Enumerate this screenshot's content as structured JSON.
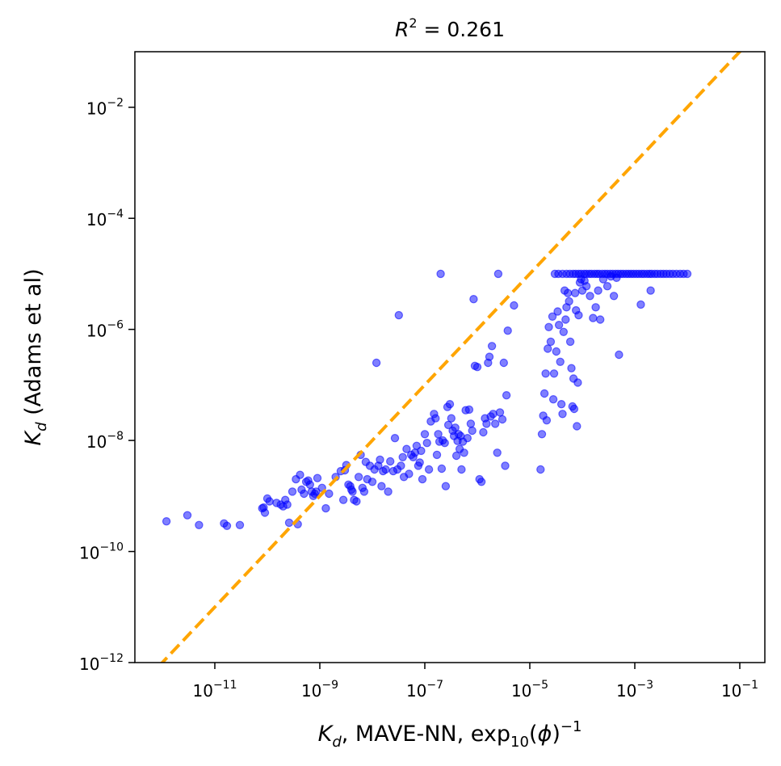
{
  "chart_data": {
    "type": "scatter",
    "title": {
      "base": "R",
      "sup": "2",
      "rest": " = 0.261"
    },
    "xlabel": {
      "sym": "K",
      "sub": "d",
      "main": ", MAVE-NN, exp",
      "sub2": "10",
      "mid": "(",
      "phi": "ϕ",
      "close": ")",
      "sup": "−1"
    },
    "ylabel": {
      "sym": "K",
      "sub": "d",
      "main": " (Adams et al)"
    },
    "x_scale": "log",
    "y_scale": "log",
    "xlim": [
      3e-13,
      0.3
    ],
    "ylim": [
      1e-12,
      0.1
    ],
    "x_ticks": [
      {
        "value": 1e-11,
        "base": "10",
        "exp": "−11"
      },
      {
        "value": 1e-09,
        "base": "10",
        "exp": "−9"
      },
      {
        "value": 1e-07,
        "base": "10",
        "exp": "−7"
      },
      {
        "value": 1e-05,
        "base": "10",
        "exp": "−5"
      },
      {
        "value": 0.001,
        "base": "10",
        "exp": "−3"
      },
      {
        "value": 0.1,
        "base": "10",
        "exp": "−1"
      }
    ],
    "y_ticks": [
      {
        "value": 1e-12,
        "base": "10",
        "exp": "−12"
      },
      {
        "value": 1e-10,
        "base": "10",
        "exp": "−10"
      },
      {
        "value": 1e-08,
        "base": "10",
        "exp": "−8"
      },
      {
        "value": 1e-06,
        "base": "10",
        "exp": "−6"
      },
      {
        "value": 0.0001,
        "base": "10",
        "exp": "−4"
      },
      {
        "value": 0.01,
        "base": "10",
        "exp": "−2"
      }
    ],
    "grid": false,
    "colors": {
      "points": "#0000ff",
      "diagonal": "#ffa500"
    },
    "diagonal": {
      "style": "dashed",
      "from": [
        1e-13,
        1e-13
      ],
      "to": [
        1,
        1
      ]
    },
    "points": [
      [
        1.2e-12,
        3.5e-10
      ],
      [
        3e-12,
        4.5e-10
      ],
      [
        5e-12,
        3e-10
      ],
      [
        1.5e-11,
        3.2e-10
      ],
      [
        1.7e-11,
        2.9e-10
      ],
      [
        3e-11,
        3e-10
      ],
      [
        8e-11,
        6e-10
      ],
      [
        8.5e-11,
        6.2e-10
      ],
      [
        9e-11,
        5e-10
      ],
      [
        1e-10,
        9e-10
      ],
      [
        1.1e-10,
        8e-10
      ],
      [
        1.5e-10,
        7.5e-10
      ],
      [
        1.8e-10,
        7e-10
      ],
      [
        2e-10,
        6.5e-10
      ],
      [
        2.2e-10,
        8.5e-10
      ],
      [
        2.4e-10,
        7e-10
      ],
      [
        2.6e-10,
        3.3e-10
      ],
      [
        3e-10,
        1.2e-09
      ],
      [
        3.5e-10,
        2e-09
      ],
      [
        3.8e-10,
        3.1e-10
      ],
      [
        4.2e-10,
        2.4e-09
      ],
      [
        4.5e-10,
        1.3e-09
      ],
      [
        5e-10,
        1.1e-09
      ],
      [
        5.5e-10,
        1.8e-09
      ],
      [
        6e-10,
        1.9e-09
      ],
      [
        6.5e-10,
        1.6e-09
      ],
      [
        7e-10,
        1.2e-09
      ],
      [
        7.5e-10,
        1e-09
      ],
      [
        8e-10,
        1.1e-09
      ],
      [
        8.5e-10,
        1.2e-09
      ],
      [
        9e-10,
        2.1e-09
      ],
      [
        1.1e-09,
        1.4e-09
      ],
      [
        1.3e-09,
        6e-10
      ],
      [
        1.5e-09,
        1.1e-09
      ],
      [
        2e-09,
        2.2e-09
      ],
      [
        2.5e-09,
        2.8e-09
      ],
      [
        2.8e-09,
        8.5e-10
      ],
      [
        3e-09,
        2.9e-09
      ],
      [
        3.2e-09,
        3.6e-09
      ],
      [
        3.5e-09,
        1.6e-09
      ],
      [
        3.8e-09,
        1.5e-09
      ],
      [
        4e-09,
        1.3e-09
      ],
      [
        4.2e-09,
        1.2e-09
      ],
      [
        4.5e-09,
        8.5e-10
      ],
      [
        5e-09,
        8e-10
      ],
      [
        5.5e-09,
        2.2e-09
      ],
      [
        6e-09,
        5.5e-09
      ],
      [
        6.5e-09,
        1.4e-09
      ],
      [
        7e-09,
        1.2e-09
      ],
      [
        7.5e-09,
        4.1e-09
      ],
      [
        8e-09,
        2e-09
      ],
      [
        9e-09,
        3.5e-09
      ],
      [
        1e-08,
        1.8e-09
      ],
      [
        1.1e-08,
        3e-09
      ],
      [
        1.2e-08,
        2.5e-07
      ],
      [
        1.3e-08,
        3.5e-09
      ],
      [
        1.4e-08,
        4.5e-09
      ],
      [
        1.5e-08,
        1.5e-09
      ],
      [
        1.6e-08,
        2.8e-09
      ],
      [
        1.8e-08,
        3e-09
      ],
      [
        2e-08,
        1.2e-09
      ],
      [
        2.2e-08,
        4.2e-09
      ],
      [
        2.5e-08,
        2.8e-09
      ],
      [
        2.7e-08,
        1.1e-08
      ],
      [
        3e-08,
        3e-09
      ],
      [
        3.2e-08,
        1.8e-06
      ],
      [
        3.5e-08,
        3.5e-09
      ],
      [
        3.8e-08,
        5e-09
      ],
      [
        4e-08,
        2.2e-09
      ],
      [
        4.5e-08,
        7e-09
      ],
      [
        5e-08,
        2.5e-09
      ],
      [
        5.5e-08,
        5.5e-09
      ],
      [
        6e-08,
        5e-09
      ],
      [
        6.5e-08,
        6e-09
      ],
      [
        7e-08,
        8e-09
      ],
      [
        7.5e-08,
        3.5e-09
      ],
      [
        8e-08,
        4e-09
      ],
      [
        8.5e-08,
        6.5e-09
      ],
      [
        9e-08,
        2e-09
      ],
      [
        1e-07,
        1.3e-08
      ],
      [
        1.1e-07,
        9e-09
      ],
      [
        1.2e-07,
        3e-09
      ],
      [
        1.3e-07,
        2.2e-08
      ],
      [
        1.5e-07,
        3e-08
      ],
      [
        1.6e-07,
        2.5e-08
      ],
      [
        1.7e-07,
        5.5e-09
      ],
      [
        1.8e-07,
        1.3e-08
      ],
      [
        1.9e-07,
        9.5e-09
      ],
      [
        2e-07,
        1e-05
      ],
      [
        2.1e-07,
        3.1e-09
      ],
      [
        2.2e-07,
        1e-08
      ],
      [
        2.4e-07,
        9e-09
      ],
      [
        2.5e-07,
        1.5e-09
      ],
      [
        2.7e-07,
        4e-08
      ],
      [
        2.8e-07,
        1.9e-08
      ],
      [
        3e-07,
        4.5e-08
      ],
      [
        3.2e-07,
        2.5e-08
      ],
      [
        3.4e-07,
        1.5e-08
      ],
      [
        3.6e-07,
        1.2e-08
      ],
      [
        3.8e-07,
        1.7e-08
      ],
      [
        4e-07,
        5.3e-09
      ],
      [
        4.2e-07,
        9.8e-09
      ],
      [
        4.4e-07,
        1.3e-08
      ],
      [
        4.6e-07,
        7e-09
      ],
      [
        4.8e-07,
        1.2e-08
      ],
      [
        5e-07,
        3e-09
      ],
      [
        5.3e-07,
        9.5e-09
      ],
      [
        5.6e-07,
        6e-09
      ],
      [
        6e-07,
        3.5e-08
      ],
      [
        6.5e-07,
        1.1e-08
      ],
      [
        7e-07,
        3.6e-08
      ],
      [
        7.5e-07,
        2e-08
      ],
      [
        8e-07,
        1.5e-08
      ],
      [
        8.5e-07,
        3.5e-06
      ],
      [
        9e-07,
        2.2e-07
      ],
      [
        1e-06,
        2.1e-07
      ],
      [
        1.1e-06,
        2e-09
      ],
      [
        1.2e-06,
        1.8e-09
      ],
      [
        1.3e-06,
        1.4e-08
      ],
      [
        1.4e-06,
        2.5e-08
      ],
      [
        1.5e-06,
        2e-08
      ],
      [
        1.6e-06,
        2.5e-07
      ],
      [
        1.7e-06,
        3.2e-07
      ],
      [
        1.8e-06,
        2.7e-08
      ],
      [
        1.9e-06,
        5e-07
      ],
      [
        2e-06,
        3e-08
      ],
      [
        2.2e-06,
        2e-08
      ],
      [
        2.4e-06,
        6e-09
      ],
      [
        2.5e-06,
        1e-05
      ],
      [
        2.7e-06,
        3.2e-08
      ],
      [
        3e-06,
        2.4e-08
      ],
      [
        3.2e-06,
        2.5e-07
      ],
      [
        3.4e-06,
        3.5e-09
      ],
      [
        3.6e-06,
        6.5e-08
      ],
      [
        3.8e-06,
        9.5e-07
      ],
      [
        5e-06,
        2.7e-06
      ],
      [
        1.6e-05,
        3e-09
      ],
      [
        1.7e-05,
        1.3e-08
      ],
      [
        1.8e-05,
        2.8e-08
      ],
      [
        1.9e-05,
        7e-08
      ],
      [
        2e-05,
        1.6e-07
      ],
      [
        2.1e-05,
        2.3e-08
      ],
      [
        2.2e-05,
        4.5e-07
      ],
      [
        2.3e-05,
        1.1e-06
      ],
      [
        2.5e-05,
        6e-07
      ],
      [
        2.7e-05,
        1.7e-06
      ],
      [
        2.8e-05,
        5.5e-08
      ],
      [
        2.9e-05,
        1.6e-07
      ],
      [
        3e-05,
        1e-05
      ],
      [
        3.2e-05,
        4e-07
      ],
      [
        3.4e-05,
        2.1e-06
      ],
      [
        3.6e-05,
        1.2e-06
      ],
      [
        3.8e-05,
        2.6e-07
      ],
      [
        4e-05,
        4.5e-08
      ],
      [
        4.2e-05,
        3e-08
      ],
      [
        4.4e-05,
        9e-07
      ],
      [
        4.6e-05,
        5e-06
      ],
      [
        4.8e-05,
        1.5e-06
      ],
      [
        5e-05,
        2.5e-06
      ],
      [
        5.3e-05,
        4.5e-06
      ],
      [
        5.6e-05,
        3.2e-06
      ],
      [
        5.9e-05,
        6e-07
      ],
      [
        6.2e-05,
        2e-07
      ],
      [
        6.5e-05,
        4.1e-08
      ],
      [
        6.8e-05,
        1.3e-07
      ],
      [
        7e-05,
        3.7e-08
      ],
      [
        7.3e-05,
        4.5e-06
      ],
      [
        7.6e-05,
        2.2e-06
      ],
      [
        7.9e-05,
        1.8e-08
      ],
      [
        8.2e-05,
        1.1e-07
      ],
      [
        8.5e-05,
        1.8e-06
      ],
      [
        9e-05,
        7e-06
      ],
      [
        9.5e-05,
        8e-06
      ],
      [
        0.0001,
        5e-06
      ],
      [
        0.00011,
        7.5e-06
      ],
      [
        0.00012,
        6e-06
      ],
      [
        0.00014,
        4e-06
      ],
      [
        0.00016,
        1.6e-06
      ],
      [
        0.00018,
        2.5e-06
      ],
      [
        0.0002,
        5e-06
      ],
      [
        0.00022,
        1.5e-06
      ],
      [
        0.00025,
        8e-06
      ],
      [
        0.0003,
        6e-06
      ],
      [
        0.00035,
        9e-06
      ],
      [
        0.0004,
        4e-06
      ],
      [
        0.00045,
        8.5e-06
      ],
      [
        0.0005,
        3.5e-07
      ],
      [
        0.0013,
        2.8e-06
      ],
      [
        0.002,
        5e-06
      ],
      [
        3.5e-05,
        1e-05
      ],
      [
        4.2e-05,
        1e-05
      ],
      [
        5e-05,
        1e-05
      ],
      [
        5.8e-05,
        1e-05
      ],
      [
        6.7e-05,
        1e-05
      ],
      [
        7.5e-05,
        1e-05
      ],
      [
        8.5e-05,
        1e-05
      ],
      [
        9.5e-05,
        1e-05
      ],
      [
        0.000108,
        1e-05
      ],
      [
        0.00012,
        1e-05
      ],
      [
        0.000135,
        1e-05
      ],
      [
        0.00015,
        1e-05
      ],
      [
        0.00017,
        1e-05
      ],
      [
        0.00019,
        1e-05
      ],
      [
        0.00021,
        1e-05
      ],
      [
        0.00024,
        1e-05
      ],
      [
        0.00027,
        1e-05
      ],
      [
        0.0003,
        1e-05
      ],
      [
        0.00034,
        1e-05
      ],
      [
        0.00038,
        1e-05
      ],
      [
        0.00043,
        1e-05
      ],
      [
        0.00048,
        1e-05
      ],
      [
        0.00054,
        1e-05
      ],
      [
        0.0006,
        1e-05
      ],
      [
        0.00068,
        1e-05
      ],
      [
        0.00076,
        1e-05
      ],
      [
        0.00085,
        1e-05
      ],
      [
        0.00095,
        1e-05
      ],
      [
        0.00107,
        1e-05
      ],
      [
        0.0012,
        1e-05
      ],
      [
        0.00135,
        1e-05
      ],
      [
        0.0015,
        1e-05
      ],
      [
        0.0017,
        1e-05
      ],
      [
        0.0019,
        1e-05
      ],
      [
        0.0021,
        1e-05
      ],
      [
        0.0024,
        1e-05
      ],
      [
        0.0027,
        1e-05
      ],
      [
        0.0031,
        1e-05
      ],
      [
        0.0035,
        1e-05
      ],
      [
        0.004,
        1e-05
      ],
      [
        0.0046,
        1e-05
      ],
      [
        0.0053,
        1e-05
      ],
      [
        0.0062,
        1e-05
      ],
      [
        0.0073,
        1e-05
      ],
      [
        0.0085,
        1e-05
      ],
      [
        0.01,
        1e-05
      ]
    ]
  }
}
